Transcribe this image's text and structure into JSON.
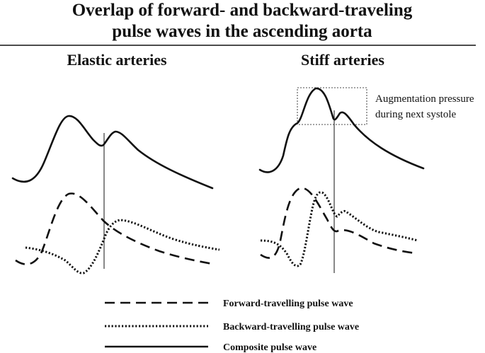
{
  "title": {
    "line1": "Overlap of forward- and backward-traveling",
    "line2": "pulse waves in the ascending aorta"
  },
  "panels": {
    "left": {
      "label": "Elastic arteries"
    },
    "right": {
      "label": "Stiff arteries",
      "annotation_line1": "Augmentation pressure",
      "annotation_line2": "during next systole"
    }
  },
  "legend": {
    "forward": "Forward-travelling pulse wave",
    "backward": "Backward-travelling pulse wave",
    "composite": "Composite pulse wave"
  },
  "colors": {
    "ink": "#111111"
  }
}
